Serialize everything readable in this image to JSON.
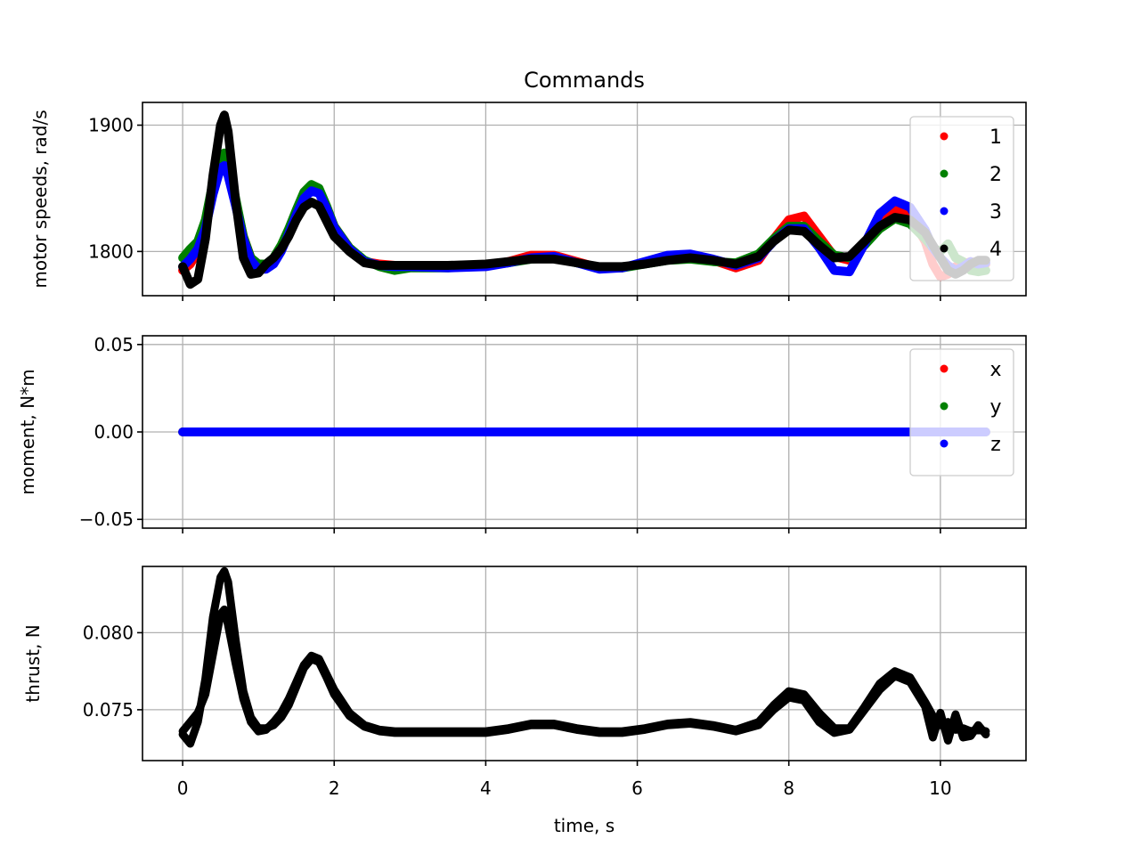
{
  "figure": {
    "title": "Commands",
    "xlabel": "time, s",
    "xlim": [
      -0.53,
      11.13
    ],
    "xticks": [
      0,
      2,
      4,
      6,
      8,
      10
    ],
    "xtick_labels": [
      "0",
      "2",
      "4",
      "6",
      "8",
      "10"
    ]
  },
  "chart_data": [
    {
      "type": "line",
      "ylabel": "motor speeds, rad/s",
      "ylim": [
        1765,
        1918
      ],
      "yticks": [
        1800,
        1900
      ],
      "ytick_labels": [
        "1800",
        "1900"
      ],
      "grid": true,
      "legend_placement": "top-right",
      "x": [
        0,
        0.1,
        0.2,
        0.3,
        0.4,
        0.5,
        0.55,
        0.6,
        0.7,
        0.8,
        0.9,
        1.0,
        1.1,
        1.2,
        1.3,
        1.4,
        1.5,
        1.6,
        1.7,
        1.8,
        1.9,
        2.0,
        2.2,
        2.4,
        2.6,
        2.8,
        3.0,
        3.5,
        4.0,
        4.3,
        4.6,
        4.9,
        5.2,
        5.5,
        5.8,
        6.1,
        6.4,
        6.7,
        7.0,
        7.3,
        7.6,
        7.8,
        8.0,
        8.2,
        8.4,
        8.6,
        8.8,
        9.0,
        9.2,
        9.4,
        9.6,
        9.8,
        9.9,
        10.0,
        10.1,
        10.2,
        10.3,
        10.4,
        10.5,
        10.6
      ],
      "series": [
        {
          "name": "1",
          "color": "#ff0000",
          "values": [
            1785,
            1790,
            1800,
            1820,
            1852,
            1872,
            1875,
            1868,
            1840,
            1812,
            1795,
            1788,
            1788,
            1792,
            1802,
            1815,
            1830,
            1843,
            1850,
            1848,
            1835,
            1820,
            1803,
            1792,
            1790,
            1789,
            1789,
            1788,
            1789,
            1792,
            1797,
            1797,
            1792,
            1787,
            1787,
            1791,
            1795,
            1796,
            1793,
            1787,
            1793,
            1810,
            1825,
            1828,
            1812,
            1796,
            1793,
            1807,
            1823,
            1834,
            1828,
            1808,
            1790,
            1780,
            1782,
            1788,
            1790,
            1792,
            1790,
            1790
          ]
        },
        {
          "name": "2",
          "color": "#008000",
          "values": [
            1795,
            1802,
            1808,
            1825,
            1855,
            1875,
            1878,
            1870,
            1842,
            1812,
            1795,
            1790,
            1790,
            1795,
            1805,
            1818,
            1833,
            1847,
            1853,
            1850,
            1836,
            1820,
            1803,
            1793,
            1788,
            1785,
            1787,
            1787,
            1789,
            1791,
            1794,
            1795,
            1791,
            1787,
            1787,
            1790,
            1793,
            1794,
            1792,
            1791,
            1798,
            1810,
            1820,
            1820,
            1808,
            1797,
            1795,
            1805,
            1818,
            1826,
            1822,
            1810,
            1803,
            1800,
            1806,
            1795,
            1792,
            1785,
            1784,
            1785
          ]
        },
        {
          "name": "3",
          "color": "#0000ff",
          "values": [
            1788,
            1794,
            1802,
            1818,
            1845,
            1866,
            1868,
            1860,
            1836,
            1810,
            1793,
            1786,
            1786,
            1790,
            1800,
            1814,
            1829,
            1842,
            1848,
            1846,
            1834,
            1819,
            1802,
            1792,
            1789,
            1788,
            1788,
            1787,
            1788,
            1791,
            1795,
            1796,
            1791,
            1786,
            1787,
            1792,
            1797,
            1798,
            1794,
            1789,
            1795,
            1808,
            1818,
            1818,
            1803,
            1785,
            1784,
            1806,
            1830,
            1840,
            1835,
            1817,
            1803,
            1795,
            1789,
            1785,
            1788,
            1792,
            1790,
            1791
          ]
        },
        {
          "name": "4",
          "color": "#000000",
          "values": [
            1788,
            1774,
            1778,
            1810,
            1860,
            1900,
            1908,
            1895,
            1840,
            1795,
            1782,
            1783,
            1790,
            1795,
            1802,
            1812,
            1825,
            1835,
            1839,
            1836,
            1824,
            1812,
            1800,
            1791,
            1789,
            1789,
            1789,
            1789,
            1790,
            1792,
            1794,
            1794,
            1791,
            1788,
            1788,
            1790,
            1793,
            1795,
            1793,
            1790,
            1796,
            1808,
            1817,
            1816,
            1805,
            1795,
            1796,
            1808,
            1820,
            1827,
            1825,
            1815,
            1805,
            1795,
            1785,
            1782,
            1785,
            1790,
            1793,
            1793
          ]
        }
      ]
    },
    {
      "type": "line",
      "ylabel": "moment, N*m",
      "ylim": [
        -0.055,
        0.055
      ],
      "yticks": [
        -0.05,
        0.0,
        0.05
      ],
      "ytick_labels": [
        "−0.05",
        "0.00",
        "0.05"
      ],
      "grid": true,
      "legend_placement": "top-right",
      "x": [
        0,
        10.6
      ],
      "series": [
        {
          "name": "x",
          "color": "#ff0000",
          "values": [
            0,
            0
          ]
        },
        {
          "name": "y",
          "color": "#008000",
          "values": [
            0,
            0
          ]
        },
        {
          "name": "z",
          "color": "#0000ff",
          "values": [
            0,
            0
          ]
        }
      ]
    },
    {
      "type": "line",
      "ylabel": "thrust, N",
      "ylim": [
        0.0717,
        0.0843
      ],
      "yticks": [
        0.075,
        0.08
      ],
      "ytick_labels": [
        "0.075",
        "0.080"
      ],
      "grid": true,
      "x": [
        0,
        0.1,
        0.2,
        0.3,
        0.4,
        0.5,
        0.55,
        0.6,
        0.7,
        0.8,
        0.9,
        1.0,
        1.1,
        1.2,
        1.3,
        1.4,
        1.5,
        1.6,
        1.7,
        1.8,
        1.9,
        2.0,
        2.2,
        2.4,
        2.6,
        2.8,
        3.0,
        3.5,
        4.0,
        4.3,
        4.6,
        4.9,
        5.2,
        5.5,
        5.8,
        6.1,
        6.4,
        6.7,
        7.0,
        7.3,
        7.6,
        7.8,
        8.0,
        8.2,
        8.4,
        8.6,
        8.8,
        9.0,
        9.2,
        9.4,
        9.6,
        9.8,
        9.9,
        10.0,
        10.1,
        10.2,
        10.3,
        10.4,
        10.5,
        10.6
      ],
      "series": [
        {
          "color": "#000000",
          "values": [
            0.0736,
            0.0742,
            0.0748,
            0.076,
            0.0786,
            0.0812,
            0.0815,
            0.0805,
            0.078,
            0.0757,
            0.0742,
            0.0736,
            0.0737,
            0.0742,
            0.0748,
            0.0757,
            0.0768,
            0.0779,
            0.0785,
            0.0783,
            0.0773,
            0.0763,
            0.0748,
            0.074,
            0.0737,
            0.0736,
            0.0736,
            0.0736,
            0.0736,
            0.0738,
            0.0741,
            0.0741,
            0.0738,
            0.0736,
            0.0736,
            0.0738,
            0.0741,
            0.0742,
            0.074,
            0.0737,
            0.0742,
            0.0753,
            0.0762,
            0.076,
            0.0748,
            0.0738,
            0.0738,
            0.0752,
            0.0767,
            0.0775,
            0.0771,
            0.0755,
            0.0746,
            0.074,
            0.0742,
            0.0737,
            0.0738,
            0.0736,
            0.0737,
            0.0736
          ]
        },
        {
          "color": "#000000",
          "values": [
            0.0734,
            0.0728,
            0.0742,
            0.077,
            0.081,
            0.0836,
            0.084,
            0.0833,
            0.0795,
            0.0762,
            0.0745,
            0.0738,
            0.0738,
            0.074,
            0.0745,
            0.0753,
            0.0765,
            0.0777,
            0.0783,
            0.0781,
            0.0771,
            0.076,
            0.0746,
            0.0739,
            0.0736,
            0.0735,
            0.0735,
            0.0735,
            0.0735,
            0.0737,
            0.074,
            0.074,
            0.0737,
            0.0735,
            0.0735,
            0.0737,
            0.074,
            0.0741,
            0.0739,
            0.0736,
            0.074,
            0.075,
            0.0758,
            0.0756,
            0.0742,
            0.0735,
            0.0737,
            0.075,
            0.0763,
            0.0772,
            0.0768,
            0.0752,
            0.0732,
            0.0748,
            0.073,
            0.0747,
            0.0732,
            0.0733,
            0.074,
            0.0734
          ]
        }
      ]
    }
  ]
}
